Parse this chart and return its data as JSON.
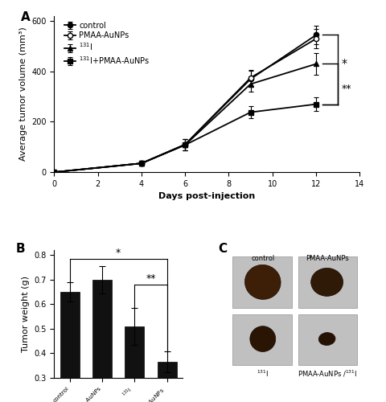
{
  "panel_A": {
    "days": [
      0,
      4,
      6,
      9,
      12
    ],
    "control_mean": [
      0,
      35,
      110,
      370,
      545
    ],
    "control_err": [
      0,
      10,
      22,
      32,
      38
    ],
    "pmaa_mean": [
      0,
      35,
      110,
      375,
      530
    ],
    "pmaa_err": [
      0,
      10,
      22,
      32,
      38
    ],
    "iodine_mean": [
      0,
      35,
      108,
      350,
      430
    ],
    "iodine_err": [
      0,
      10,
      22,
      30,
      42
    ],
    "combo_mean": [
      0,
      35,
      108,
      238,
      270
    ],
    "combo_err": [
      0,
      10,
      22,
      25,
      28
    ],
    "xlabel": "Days post-injection",
    "ylabel": "Average tumor volume (mm³)",
    "xlim": [
      0,
      14
    ],
    "ylim": [
      0,
      620
    ],
    "xticks": [
      0,
      2,
      4,
      6,
      8,
      10,
      12,
      14
    ],
    "yticks": [
      0,
      200,
      400,
      600
    ]
  },
  "panel_B": {
    "means": [
      0.65,
      0.7,
      0.51,
      0.365
    ],
    "errors": [
      0.04,
      0.055,
      0.075,
      0.042
    ],
    "ylabel": "Tumor weight (g)",
    "ylim": [
      0.3,
      0.82
    ],
    "yticks": [
      0.3,
      0.4,
      0.5,
      0.6,
      0.7,
      0.8
    ],
    "bar_color": "#111111"
  },
  "label_fontsize": 8,
  "tick_fontsize": 7,
  "legend_fontsize": 7,
  "background_color": "white"
}
